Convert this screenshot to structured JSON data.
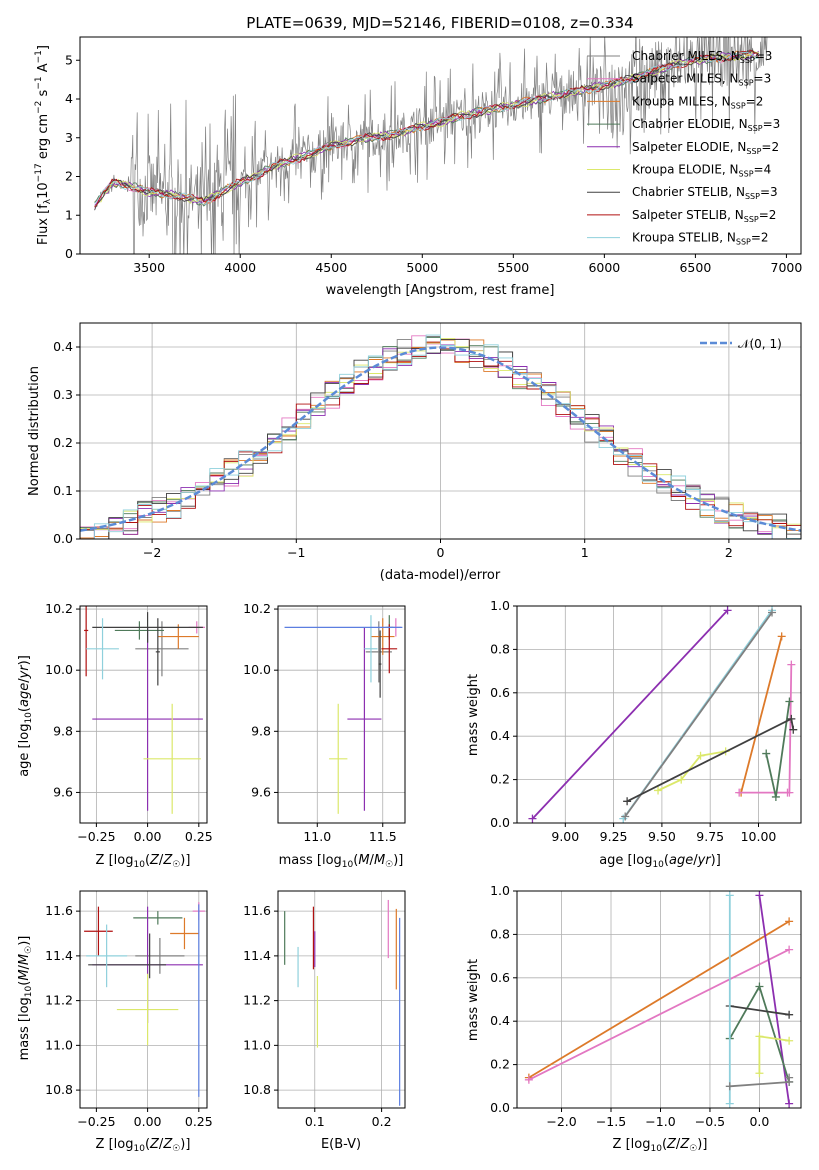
{
  "figure_title": "PLATE=0639, MJD=52146, FIBERID=0108, z=0.334",
  "colors": {
    "Chabrier MILES": "#808080",
    "Salpeter MILES": "#e377c2",
    "Kroupa MILES": "#dd7a2a",
    "Chabrier ELODIE": "#4f7a5a",
    "Salpeter ELODIE": "#8c2fb0",
    "Kroupa ELODIE": "#dbe86a",
    "Chabrier STELIB": "#404040",
    "Salpeter STELIB": "#b01010",
    "Kroupa STELIB": "#8fd0dc",
    "Gaussian": "#5b8bd6",
    "Extra": "#5b7ee0"
  },
  "chart_data": [
    {
      "id": "spectrum",
      "type": "line",
      "title": "PLATE=0639, MJD=52146, FIBERID=0108, z=0.334",
      "xlabel": "wavelength [Angstrom, rest frame]",
      "ylabel": "Flux [f_λ 10^-17 erg cm^-2 s^-1 A^-1]",
      "xlim": [
        3120,
        7080
      ],
      "ylim": [
        0,
        5.6
      ],
      "xticks": [
        3500,
        4000,
        4500,
        5000,
        5500,
        6000,
        6500,
        7000
      ],
      "yticks": [
        0,
        1,
        2,
        3,
        4,
        5
      ],
      "grid": false,
      "legend_loc": "upper right",
      "series": [
        {
          "name": "Chabrier MILES, N_SSP=3"
        },
        {
          "name": "Salpeter MILES, N_SSP=3"
        },
        {
          "name": "Kroupa MILES, N_SSP=2"
        },
        {
          "name": "Chabrier ELODIE, N_SSP=3"
        },
        {
          "name": "Salpeter ELODIE, N_SSP=2"
        },
        {
          "name": "Kroupa ELODIE, N_SSP=4"
        },
        {
          "name": "Chabrier STELIB, N_SSP=3"
        },
        {
          "name": "Salpeter STELIB, N_SSP=2"
        },
        {
          "name": "Kroupa STELIB, N_SSP=2"
        }
      ],
      "continuum_knots": {
        "x": [
          3200,
          3300,
          3400,
          3500,
          3600,
          3700,
          3800,
          3900,
          4000,
          4100,
          4200,
          4300,
          4400,
          4500,
          4600,
          4700,
          4800,
          4900,
          5000,
          5100,
          5200,
          5300,
          5400,
          5500,
          5600,
          5700,
          5800,
          5900,
          6000,
          6100,
          6200,
          6300,
          6400,
          6500,
          6600,
          6700,
          6800
        ],
        "y": [
          1.25,
          1.85,
          1.75,
          1.6,
          1.55,
          1.45,
          1.35,
          1.6,
          1.85,
          2.05,
          2.3,
          2.45,
          2.6,
          2.8,
          2.9,
          3.0,
          3.05,
          3.15,
          3.3,
          3.4,
          3.55,
          3.65,
          3.75,
          3.85,
          3.95,
          4.05,
          4.15,
          4.25,
          4.35,
          4.45,
          4.6,
          4.75,
          4.9,
          5.0,
          5.05,
          5.1,
          5.15
        ]
      }
    },
    {
      "id": "residuals",
      "type": "line",
      "xlabel": "(data-model)/error",
      "ylabel": "Normed distribution",
      "xlim": [
        -2.5,
        2.5
      ],
      "ylim": [
        0,
        0.45
      ],
      "xticks": [
        -2,
        -1,
        0,
        1,
        2
      ],
      "yticks": [
        0.0,
        0.1,
        0.2,
        0.3,
        0.4
      ],
      "grid": true,
      "legend_loc": "upper right",
      "legend_label": "𝒩(0, 1)",
      "bin_width": 0.1
    },
    {
      "id": "Z-age",
      "type": "scatter",
      "xlabel": "Z [log10(Z/Z☉)]",
      "ylabel": "age  [log10(age/yr)]",
      "xlim": [
        -0.33,
        0.29
      ],
      "ylim": [
        9.5,
        10.21
      ],
      "xticks": [
        -0.25,
        0.0,
        0.25
      ],
      "yticks": [
        9.6,
        9.8,
        10.0,
        10.2
      ],
      "grid": true,
      "points": [
        {
          "label": "Chabrier MILES",
          "x": 0.07,
          "y": 10.07,
          "xerr": 0.13,
          "yerr": 0.09
        },
        {
          "label": "Salpeter MILES",
          "x": 0.24,
          "y": 10.14,
          "xerr": 0.04,
          "yerr": 0.02
        },
        {
          "label": "Kroupa MILES",
          "x": 0.15,
          "y": 10.11,
          "xerr": 0.1,
          "yerr": 0.04
        },
        {
          "label": "Chabrier ELODIE",
          "x": -0.04,
          "y": 10.13,
          "xerr": 0.12,
          "yerr": 0.03
        },
        {
          "label": "Salpeter ELODIE",
          "x": 0.0,
          "y": 9.84,
          "xerr": 0.27,
          "yerr": 0.3
        },
        {
          "label": "Kroupa ELODIE",
          "x": 0.12,
          "y": 9.71,
          "xerr": 0.14,
          "yerr": 0.18
        },
        {
          "label": "Chabrier STELIB",
          "x": -0.0,
          "y": 10.14,
          "xerr": 0.27,
          "yerr": 0.05
        },
        {
          "label": "Salpeter STELIB",
          "x": -0.3,
          "y": 10.13,
          "xerr": 0.01,
          "yerr": 0.15
        },
        {
          "label": "Kroupa STELIB",
          "x": -0.22,
          "y": 10.07,
          "xerr": 0.08,
          "yerr": 0.1
        },
        {
          "label": "Chabrier STELIB b",
          "x": 0.05,
          "y": 10.06,
          "xerr": 0.01,
          "yerr": 0.11
        }
      ]
    },
    {
      "id": "mass-age",
      "type": "scatter",
      "xlabel": "mass [log10(M/M☉)]",
      "xlim": [
        10.7,
        11.67
      ],
      "ylim": [
        9.5,
        10.21
      ],
      "xticks": [
        11.0,
        11.5
      ],
      "yticks": [
        9.6,
        9.8,
        10.0,
        10.2
      ],
      "grid": true,
      "points": [
        {
          "label": "Chabrier MILES",
          "x": 11.47,
          "y": 10.06,
          "xerr": 0.1,
          "yerr": 0.1
        },
        {
          "label": "Salpeter MILES",
          "x": 11.6,
          "y": 10.14,
          "xerr": 0.04,
          "yerr": 0.03
        },
        {
          "label": "Kroupa MILES",
          "x": 11.5,
          "y": 10.11,
          "xerr": 0.09,
          "yerr": 0.06
        },
        {
          "label": "Chabrier ELODIE",
          "x": 11.55,
          "y": 10.14,
          "xerr": 0.03,
          "yerr": 0.04
        },
        {
          "label": "Salpeter ELODIE",
          "x": 11.36,
          "y": 9.84,
          "xerr": 0.13,
          "yerr": 0.3
        },
        {
          "label": "Kroupa ELODIE",
          "x": 11.16,
          "y": 9.71,
          "xerr": 0.07,
          "yerr": 0.18
        },
        {
          "label": "Chabrier STELIB",
          "x": 11.48,
          "y": 10.02,
          "xerr": 0.01,
          "yerr": 0.11
        },
        {
          "label": "Salpeter STELIB",
          "x": 11.55,
          "y": 10.07,
          "xerr": 0.06,
          "yerr": 0.08
        },
        {
          "label": "Kroupa STELIB",
          "x": 11.41,
          "y": 10.07,
          "xerr": 0.05,
          "yerr": 0.11
        },
        {
          "label": "Extra",
          "x": 11.2,
          "y": 10.14,
          "xerr": 0.45,
          "yerr": 0.0
        }
      ]
    },
    {
      "id": "age-weight",
      "type": "line",
      "xlabel": "age  [log10(age/yr)]",
      "ylabel": "mass weight",
      "xlim": [
        8.75,
        10.22
      ],
      "ylim": [
        0,
        1
      ],
      "xticks": [
        9.0,
        9.25,
        9.5,
        9.75,
        10.0
      ],
      "yticks": [
        0.0,
        0.2,
        0.4,
        0.6,
        0.8,
        1.0
      ],
      "grid": true,
      "series": [
        {
          "label": "Salpeter ELODIE",
          "x": [
            8.83,
            9.84
          ],
          "y": [
            0.02,
            0.98
          ]
        },
        {
          "label": "Kroupa STELIB",
          "x": [
            9.3,
            10.07
          ],
          "y": [
            0.02,
            0.98
          ]
        },
        {
          "label": "Chabrier MILES",
          "x": [
            9.31,
            10.07
          ],
          "y": [
            0.03,
            0.97
          ]
        },
        {
          "label": "Kroupa MILES",
          "x": [
            9.91,
            10.12
          ],
          "y": [
            0.14,
            0.86
          ]
        },
        {
          "label": "Salpeter MILES",
          "x": [
            9.9,
            10.15,
            10.16,
            10.17
          ],
          "y": [
            0.14,
            0.14,
            0.14,
            0.73
          ]
        },
        {
          "label": "Chabrier ELODIE",
          "x": [
            10.04,
            10.09,
            10.16
          ],
          "y": [
            0.32,
            0.12,
            0.56
          ]
        },
        {
          "label": "Kroupa ELODIE",
          "x": [
            9.48,
            9.6,
            9.7,
            9.83
          ],
          "y": [
            0.15,
            0.2,
            0.31,
            0.33
          ]
        },
        {
          "label": "Chabrier STELIB",
          "x": [
            9.32,
            10.17,
            10.18
          ],
          "y": [
            0.1,
            0.48,
            0.43
          ]
        }
      ]
    },
    {
      "id": "Z-mass",
      "type": "scatter",
      "xlabel": "Z [log10(Z/Z☉)]",
      "ylabel": "mass [log10(M/M☉)]",
      "xlim": [
        -0.33,
        0.29
      ],
      "ylim": [
        10.72,
        11.69
      ],
      "xticks": [
        -0.25,
        0.0,
        0.25
      ],
      "yticks": [
        10.8,
        11.0,
        11.2,
        11.4,
        11.6
      ],
      "grid": true,
      "points": [
        {
          "label": "Chabrier MILES",
          "x": 0.06,
          "y": 11.4,
          "xerr": 0.12,
          "yerr": 0.08
        },
        {
          "label": "Salpeter MILES",
          "x": 0.25,
          "y": 11.6,
          "xerr": 0.03,
          "yerr": 0.04
        },
        {
          "label": "Kroupa MILES",
          "x": 0.18,
          "y": 11.5,
          "xerr": 0.07,
          "yerr": 0.07
        },
        {
          "label": "Chabrier ELODIE",
          "x": 0.05,
          "y": 11.57,
          "xerr": 0.12,
          "yerr": 0.03
        },
        {
          "label": "Salpeter ELODIE",
          "x": 0.0,
          "y": 11.36,
          "xerr": 0.27,
          "yerr": 0.26
        },
        {
          "label": "Kroupa ELODIE",
          "x": 0.0,
          "y": 11.16,
          "xerr": 0.15,
          "yerr": 0.16
        },
        {
          "label": "Chabrier STELIB",
          "x": -0.1,
          "y": 11.36,
          "xerr": 0.19,
          "yerr": 0.0
        },
        {
          "label": "Salpeter STELIB",
          "x": -0.24,
          "y": 11.51,
          "xerr": 0.07,
          "yerr": 0.11
        },
        {
          "label": "Kroupa STELIB",
          "x": -0.2,
          "y": 11.4,
          "xerr": 0.1,
          "yerr": 0.14
        },
        {
          "label": "Extra",
          "x": 0.25,
          "y": 11.2,
          "xerr": 0.0,
          "yerr": 0.43
        },
        {
          "label": "Chabrier STELIB b",
          "x": 0.01,
          "y": 11.4,
          "xerr": 0.0,
          "yerr": 0.1
        }
      ]
    },
    {
      "id": "ebv-mass",
      "type": "scatter",
      "xlabel": "E(B-V)",
      "xlim": [
        0.045,
        0.235
      ],
      "ylim": [
        10.72,
        11.69
      ],
      "xticks": [
        0.1,
        0.2
      ],
      "yticks": [
        10.8,
        11.0,
        11.2,
        11.4,
        11.6
      ],
      "grid": true,
      "points": [
        {
          "label": "Chabrier ELODIE",
          "x": 0.055,
          "y": 11.48,
          "yerr": 0.12
        },
        {
          "label": "Kroupa STELIB",
          "x": 0.075,
          "y": 11.35,
          "yerr": 0.09
        },
        {
          "label": "Salpeter STELIB",
          "x": 0.098,
          "y": 11.48,
          "yerr": 0.14
        },
        {
          "label": "Salpeter ELODIE",
          "x": 0.1,
          "y": 11.43,
          "yerr": 0.08
        },
        {
          "label": "Kroupa ELODIE",
          "x": 0.104,
          "y": 11.15,
          "yerr": 0.16
        },
        {
          "label": "Salpeter MILES",
          "x": 0.21,
          "y": 11.52,
          "yerr": 0.13
        },
        {
          "label": "Kroupa MILES",
          "x": 0.222,
          "y": 11.43,
          "yerr": 0.18
        },
        {
          "label": "Extra",
          "x": 0.227,
          "y": 11.15,
          "yerr": 0.42
        }
      ]
    },
    {
      "id": "Z-weight",
      "type": "line",
      "xlabel": "Z [log10(Z/Z☉)]",
      "ylabel": "mass weight",
      "xlim": [
        -2.45,
        0.42
      ],
      "ylim": [
        0,
        1
      ],
      "xticks": [
        -2.0,
        -1.5,
        -1.0,
        -0.5,
        0.0
      ],
      "yticks": [
        0.0,
        0.2,
        0.4,
        0.6,
        0.8,
        1.0
      ],
      "grid": true,
      "series": [
        {
          "label": "Kroupa MILES",
          "x": [
            -2.33,
            0.3
          ],
          "y": [
            0.14,
            0.86
          ]
        },
        {
          "label": "Salpeter MILES",
          "x": [
            -2.33,
            0.3
          ],
          "y": [
            0.13,
            0.73
          ]
        },
        {
          "label": "Salpeter ELODIE",
          "x": [
            0.0,
            0.3
          ],
          "y": [
            0.98,
            0.02
          ]
        },
        {
          "label": "Chabrier ELODIE",
          "x": [
            -0.3,
            0.0,
            0.3
          ],
          "y": [
            0.32,
            0.56,
            0.12
          ]
        },
        {
          "label": "Kroupa ELODIE",
          "x": [
            0.0,
            0.0,
            0.3
          ],
          "y": [
            0.16,
            0.33,
            0.31
          ]
        },
        {
          "label": "Chabrier STELIB",
          "x": [
            -0.3,
            0.3
          ],
          "y": [
            0.47,
            0.43
          ]
        },
        {
          "label": "Kroupa STELIB",
          "x": [
            -0.3,
            -0.3
          ],
          "y": [
            0.02,
            0.98
          ]
        },
        {
          "label": "Chabrier MILES",
          "x": [
            -0.3,
            0.3,
            0.3
          ],
          "y": [
            0.1,
            0.12,
            0.14
          ]
        }
      ]
    }
  ]
}
